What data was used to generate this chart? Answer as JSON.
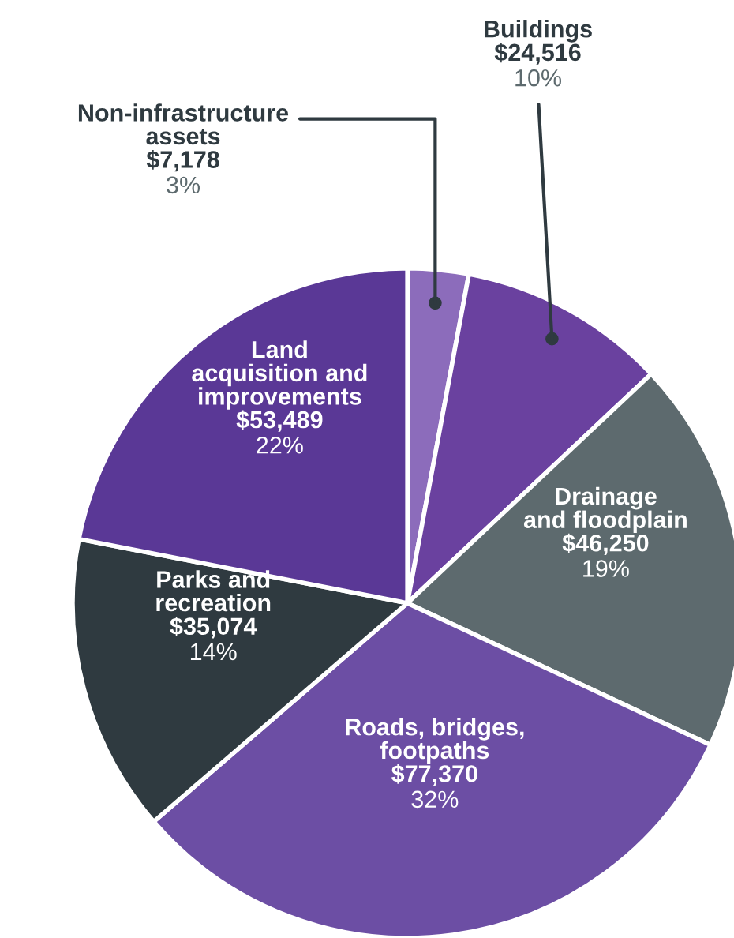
{
  "chart_data": {
    "type": "pie",
    "categories": [
      "Non-infrastructure\nassets",
      "Buildings",
      "Drainage\nand floodplain",
      "Roads, bridges,\nfootpaths",
      "Parks and\nrecreation",
      "Land\nacquisition and\nimprovements"
    ],
    "values": [
      7178,
      24516,
      46250,
      77370,
      35074,
      53489
    ],
    "value_labels": [
      "$7,178\n3%",
      "$24,516\n10%",
      "$46,250\n19%",
      "$77,370\n32%",
      "$35,074\n14%",
      "$53,489\n22%"
    ],
    "colors": [
      "#8c6cbb",
      "#6a419f",
      "#5d6a6e",
      "#6c4ea4",
      "#2f3a40",
      "#5a3896"
    ]
  }
}
